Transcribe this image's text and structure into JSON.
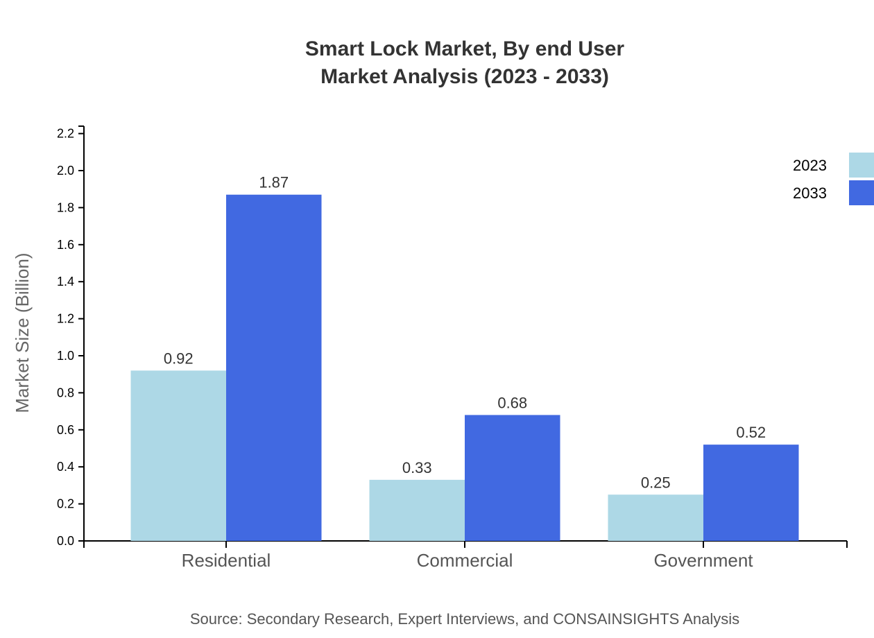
{
  "chart_data": {
    "type": "bar",
    "title": "Smart Lock Market, By end User",
    "subtitle": "Market Analysis (2023 - 2033)",
    "xlabel": "",
    "ylabel": "Market Size (Billion)",
    "ylim": [
      0,
      2.24
    ],
    "yticks": [
      "0.0",
      "0.2",
      "0.4",
      "0.6",
      "0.8",
      "1.0",
      "1.2",
      "1.4",
      "1.6",
      "1.8",
      "2.0",
      "2.2"
    ],
    "categories": [
      "Residential",
      "Commercial",
      "Government"
    ],
    "series": [
      {
        "name": "2023",
        "color": "#ADD8E6",
        "values": [
          0.92,
          0.33,
          0.25
        ],
        "labels": [
          "0.92",
          "0.33",
          "0.25"
        ]
      },
      {
        "name": "2033",
        "color": "#4169E1",
        "values": [
          1.87,
          0.68,
          0.52
        ],
        "labels": [
          "1.87",
          "0.68",
          "0.52"
        ]
      }
    ],
    "grid": false,
    "legend_placement": "top-right",
    "source": "Source: Secondary Research, Expert Interviews, and CONSAINSIGHTS Analysis"
  }
}
